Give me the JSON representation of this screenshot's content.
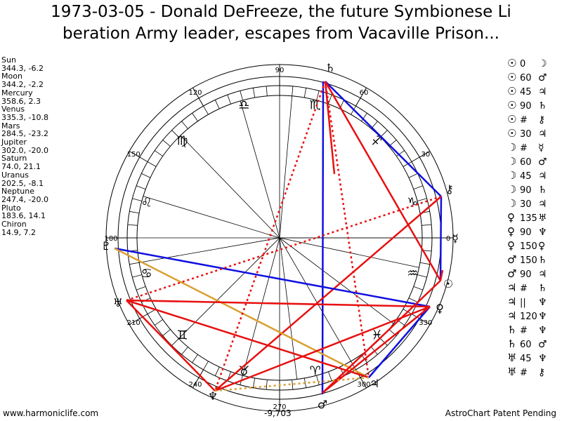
{
  "title": {
    "line1": "1973-03-05 - Donald DeFreeze, the future Symbionese Li",
    "line2": "beration Army leader, escapes from Vacaville Prison..."
  },
  "planets": [
    {
      "name": "Sun",
      "coords": "344.3, -6.2"
    },
    {
      "name": "Moon",
      "coords": "344.2, -2.2"
    },
    {
      "name": "Mercury",
      "coords": "358.6, 2.3"
    },
    {
      "name": "Venus",
      "coords": "335.3, -10.8"
    },
    {
      "name": "Mars",
      "coords": "284.5, -23.2"
    },
    {
      "name": "Jupiter",
      "coords": "302.0, -20.0"
    },
    {
      "name": "Saturn",
      "coords": "74.0, 21.1"
    },
    {
      "name": "Uranus",
      "coords": "202.5, -8.1"
    },
    {
      "name": "Neptune",
      "coords": "247.4, -20.0"
    },
    {
      "name": "Pluto",
      "coords": "183.6, 14.1"
    },
    {
      "name": "Chiron",
      "coords": "14.9, 7.2"
    }
  ],
  "aspects": [
    {
      "p1": "☉",
      "a": "0",
      "p2": "☽"
    },
    {
      "p1": "☉",
      "a": "60",
      "p2": "♂"
    },
    {
      "p1": "☉",
      "a": "45",
      "p2": "♃"
    },
    {
      "p1": "☉",
      "a": "90",
      "p2": "♄"
    },
    {
      "p1": "☉",
      "a": "#",
      "p2": "⚷"
    },
    {
      "p1": "☉",
      "a": "30",
      "p2": "♃"
    },
    {
      "p1": "☽",
      "a": "#",
      "p2": "☿"
    },
    {
      "p1": "☽",
      "a": "60",
      "p2": "♂"
    },
    {
      "p1": "☽",
      "a": "45",
      "p2": "♃"
    },
    {
      "p1": "☽",
      "a": "90",
      "p2": "♄"
    },
    {
      "p1": "☽",
      "a": "30",
      "p2": "♃"
    },
    {
      "p1": "♀",
      "a": "135",
      "p2": "♅"
    },
    {
      "p1": "♀",
      "a": "90",
      "p2": "♆"
    },
    {
      "p1": "♀",
      "a": "150",
      "p2": "♀"
    },
    {
      "p1": "♂",
      "a": "150",
      "p2": "♄"
    },
    {
      "p1": "♂",
      "a": "90",
      "p2": "♃"
    },
    {
      "p1": "♃",
      "a": "#",
      "p2": "♄"
    },
    {
      "p1": "♃",
      "a": "||",
      "p2": "♆"
    },
    {
      "p1": "♃",
      "a": "120",
      "p2": "♆"
    },
    {
      "p1": "♄",
      "a": "#",
      "p2": "♆"
    },
    {
      "p1": "♄",
      "a": "60",
      "p2": "♂"
    },
    {
      "p1": "♅",
      "a": "45",
      "p2": "♆"
    },
    {
      "p1": "♅",
      "a": "#",
      "p2": "⚷"
    }
  ],
  "wheel": {
    "degree_labels": [
      "90",
      "60",
      "30",
      "0",
      "330",
      "300",
      "270",
      "240",
      "210",
      "180",
      "150",
      "120"
    ],
    "sign_glyphs": [
      "♈",
      "♉",
      "♊",
      "♋",
      "♌",
      "♍",
      "♎",
      "♏",
      "♐",
      "♑",
      "♒",
      "♓"
    ],
    "planet_glyphs": {
      "saturn": "♄",
      "chiron": "⚷",
      "mercury": "☿",
      "sun": "☉",
      "venus": "♀",
      "jupiter": "♃",
      "mars": "♂",
      "neptune": "♆",
      "uranus": "♅",
      "pluto": "♇"
    },
    "colors": {
      "hard": "#e81010",
      "soft": "#1010e0",
      "quincunx": "#d9a030"
    }
  },
  "footer": {
    "left": "www.harmoniclife.com",
    "center": "-9,703",
    "right": "AstroChart Patent Pending"
  }
}
